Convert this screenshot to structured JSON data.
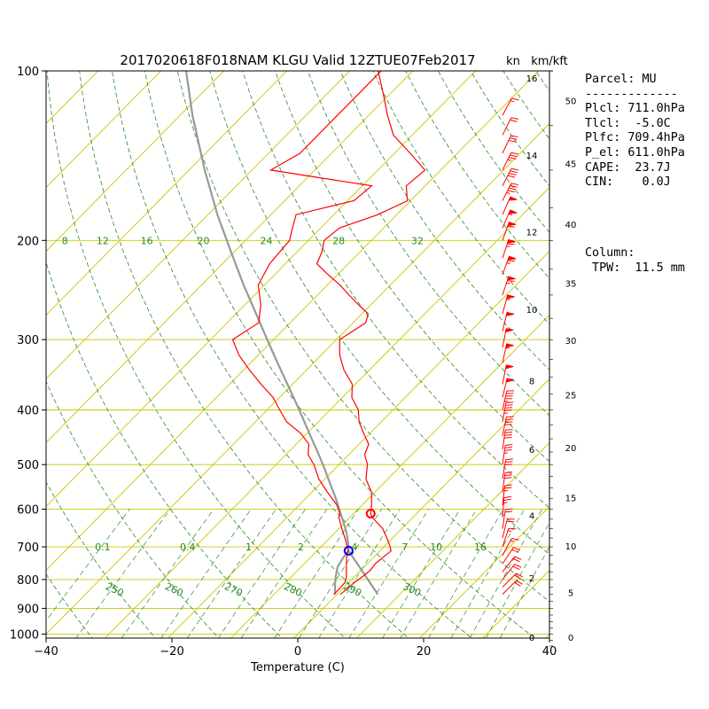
{
  "title": "2017020618F018NAM KLGU Valid 12ZTUE07Feb2017",
  "unit_kn": "kn",
  "unit_kmkft": "km/kft",
  "xlabel": "Temperature (C)",
  "params": {
    "lines": [
      "Parcel: MU",
      "-------------",
      "Plcl: 711.0hPa",
      "Tlcl:  -5.0C",
      "Plfc: 709.4hPa",
      "P_el: 611.0hPa",
      "CAPE:  23.7J",
      "CIN:    0.0J"
    ]
  },
  "column": {
    "lines": [
      "Column:",
      " TPW:  11.5 mm"
    ]
  },
  "colors": {
    "temperature": "#ff0000",
    "dewpoint": "#ff0000",
    "isotherm": "#c8c800",
    "isobar": "#c8c800",
    "dry_adiabat": "#2a8a2a",
    "mixing_ratio": "#2a8a2a",
    "parcel": "#999999",
    "lcl_marker": "#0000ff",
    "el_marker": "#ff0000",
    "barb": "#ff0000"
  },
  "chart_data": {
    "type": "skewt",
    "title": "2017020618F018NAM KLGU Valid 12ZTUE07Feb2017",
    "xlabel": "Temperature (C)",
    "xlim": [
      -40,
      40
    ],
    "plim": [
      1050,
      100
    ],
    "x_ticks": [
      "−40",
      "−20",
      "0",
      "20",
      "40"
    ],
    "x_tick_values": [
      -40,
      -20,
      0,
      20,
      40
    ],
    "pressure_ticks": [
      "1000",
      "900",
      "800",
      "700",
      "600",
      "500",
      "400",
      "300",
      "200",
      "100"
    ],
    "pressure_tick_values": [
      1000,
      900,
      800,
      700,
      600,
      500,
      400,
      300,
      200,
      100
    ],
    "isobars": [
      1000,
      900,
      800,
      700,
      600,
      500,
      400,
      300,
      200,
      100
    ],
    "dry_adiabat_labels": [
      {
        "text": "250",
        "theta": 250
      },
      {
        "text": "260",
        "theta": 260
      },
      {
        "text": "270",
        "theta": 270
      },
      {
        "text": "280",
        "theta": 280
      },
      {
        "text": "290",
        "theta": 290
      },
      {
        "text": "300",
        "theta": 300
      }
    ],
    "mixing_ratio_labels_700": [
      {
        "text": "0.1",
        "t": -31
      },
      {
        "text": "0.4",
        "t": -17.5
      },
      {
        "text": "1",
        "t": -7.8
      },
      {
        "text": "2",
        "t": 0.5
      },
      {
        "text": "4",
        "t": 9
      },
      {
        "text": "7",
        "t": 17
      },
      {
        "text": "10",
        "t": 22
      },
      {
        "text": "16",
        "t": 29
      }
    ],
    "mixing_ratio_labels_200": [
      {
        "text": "8",
        "t": -37
      },
      {
        "text": "12",
        "t": -31
      },
      {
        "text": "16",
        "t": -24
      },
      {
        "text": "20",
        "t": -15
      },
      {
        "text": "24",
        "t": -5
      },
      {
        "text": "28",
        "t": 6.5
      },
      {
        "text": "32",
        "t": 19
      }
    ],
    "height_km": [
      {
        "label": "0",
        "p": 1012
      },
      {
        "label": "2",
        "p": 795
      },
      {
        "label": "4",
        "p": 615
      },
      {
        "label": "6",
        "p": 470
      },
      {
        "label": "8",
        "p": 355
      },
      {
        "label": "10",
        "p": 265
      },
      {
        "label": "12",
        "p": 193
      },
      {
        "label": "14",
        "p": 141
      },
      {
        "label": "16",
        "p": 103
      }
    ],
    "height_kft": [
      {
        "label": "0",
        "p": 1012
      },
      {
        "label": "5",
        "p": 843
      },
      {
        "label": "10",
        "p": 697
      },
      {
        "label": "15",
        "p": 572
      },
      {
        "label": "20",
        "p": 466
      },
      {
        "label": "25",
        "p": 376
      },
      {
        "label": "30",
        "p": 301
      },
      {
        "label": "35",
        "p": 238
      },
      {
        "label": "40",
        "p": 187
      },
      {
        "label": "45",
        "p": 146
      },
      {
        "label": "50",
        "p": 113
      }
    ],
    "temperature": {
      "p": [
        850,
        830,
        810,
        790,
        770,
        750,
        730,
        712,
        700,
        680,
        650,
        620,
        611,
        590,
        560,
        530,
        500,
        480,
        460,
        440,
        420,
        400,
        380,
        360,
        340,
        320,
        300,
        280,
        270,
        260,
        250,
        240,
        230,
        220,
        210,
        200,
        190,
        180,
        170,
        160,
        150,
        140,
        130,
        120,
        110,
        100
      ],
      "t": [
        0.5,
        0.8,
        0.9,
        1.3,
        1.5,
        1.3,
        1.5,
        1.8,
        1.0,
        -0.5,
        -3.0,
        -6.5,
        -7.3,
        -8.5,
        -10.5,
        -13.5,
        -15.5,
        -17.5,
        -18.5,
        -21.0,
        -23.5,
        -25.5,
        -28.5,
        -30.5,
        -34.0,
        -37.0,
        -39.5,
        -38.0,
        -39.0,
        -42.0,
        -45.0,
        -48.0,
        -51.5,
        -55.0,
        -56.0,
        -57.5,
        -57.0,
        -53.0,
        -50.5,
        -53.0,
        -52.5,
        -57.5,
        -63.0,
        -67.0,
        -71.0,
        -75.5
      ]
    },
    "dewpoint": {
      "p": [
        850,
        830,
        810,
        790,
        770,
        750,
        730,
        712,
        700,
        680,
        650,
        620,
        611,
        590,
        560,
        530,
        500,
        480,
        460,
        440,
        420,
        400,
        380,
        360,
        340,
        320,
        300,
        280,
        260,
        240,
        220,
        200,
        190,
        180,
        170,
        160,
        150,
        140,
        130,
        120,
        110,
        100
      ],
      "t": [
        -0.5,
        -0.5,
        -0.6,
        -1.3,
        -2.3,
        -3.3,
        -4.3,
        -5.0,
        -5.8,
        -7.2,
        -9.5,
        -11.8,
        -12.2,
        -14.0,
        -17.5,
        -21.0,
        -24.0,
        -26.5,
        -28.0,
        -31.0,
        -35.0,
        -38.0,
        -41.0,
        -45.0,
        -49.0,
        -53.0,
        -56.5,
        -55.0,
        -57.5,
        -61.0,
        -62.5,
        -63.0,
        -64.5,
        -66.0,
        -59.0,
        -58.5,
        -77.0,
        -75.0,
        -75.0,
        -75.0,
        -75.0,
        -75.0
      ]
    },
    "parcel": {
      "p": [
        850,
        820,
        790,
        760,
        730,
        711,
        690,
        660,
        630,
        600,
        570,
        540,
        510,
        480,
        450,
        420,
        390,
        360,
        330,
        300,
        270,
        240,
        210,
        180,
        150,
        120,
        100
      ],
      "t": [
        -0.3,
        -1.7,
        -3.0,
        -4.2,
        -4.8,
        -5.0,
        -6.2,
        -8.2,
        -10.5,
        -13.0,
        -15.6,
        -18.5,
        -21.5,
        -24.8,
        -28.4,
        -32.2,
        -36.3,
        -40.8,
        -45.7,
        -51.0,
        -56.8,
        -63.3,
        -70.4,
        -78.5,
        -87.5,
        -98.0,
        -106.0
      ]
    },
    "parcel_dry_branch": {
      "p": [
        711,
        850
      ],
      "t": [
        -5.0,
        6.5
      ]
    },
    "lcl": {
      "p": 711,
      "t": -5.0
    },
    "el": {
      "p": 611,
      "t": -7.3
    },
    "wind_barbs": [
      {
        "p": 120,
        "u": -8,
        "v": -15
      },
      {
        "p": 130,
        "u": -10,
        "v": -20
      },
      {
        "p": 140,
        "u": -12,
        "v": -25
      },
      {
        "p": 150,
        "u": -15,
        "v": -30
      },
      {
        "p": 160,
        "u": -18,
        "v": -35
      },
      {
        "p": 170,
        "u": -20,
        "v": -40
      },
      {
        "p": 180,
        "u": -20,
        "v": -45
      },
      {
        "p": 190,
        "u": -22,
        "v": -50
      },
      {
        "p": 200,
        "u": -20,
        "v": -55
      },
      {
        "p": 215,
        "u": -20,
        "v": -60
      },
      {
        "p": 230,
        "u": -22,
        "v": -60
      },
      {
        "p": 250,
        "u": -20,
        "v": -60
      },
      {
        "p": 270,
        "u": -15,
        "v": -55
      },
      {
        "p": 290,
        "u": -12,
        "v": -50
      },
      {
        "p": 310,
        "u": -10,
        "v": -50
      },
      {
        "p": 330,
        "u": -12,
        "v": -55
      },
      {
        "p": 360,
        "u": -10,
        "v": -50
      },
      {
        "p": 380,
        "u": -12,
        "v": -50
      },
      {
        "p": 400,
        "u": -10,
        "v": -45
      },
      {
        "p": 420,
        "u": -8,
        "v": -45
      },
      {
        "p": 445,
        "u": -8,
        "v": -40
      },
      {
        "p": 470,
        "u": -6,
        "v": -40
      },
      {
        "p": 500,
        "u": -5,
        "v": -35
      },
      {
        "p": 530,
        "u": -5,
        "v": -30
      },
      {
        "p": 560,
        "u": -4,
        "v": -30
      },
      {
        "p": 590,
        "u": -3,
        "v": -25
      },
      {
        "p": 620,
        "u": -2,
        "v": -25
      },
      {
        "p": 650,
        "u": -3,
        "v": -20
      },
      {
        "p": 675,
        "u": -5,
        "v": -20
      },
      {
        "p": 700,
        "u": -5,
        "v": -15
      },
      {
        "p": 725,
        "u": -8,
        "v": -15
      },
      {
        "p": 750,
        "u": -10,
        "v": -15
      },
      {
        "p": 775,
        "u": -12,
        "v": -15
      },
      {
        "p": 800,
        "u": -12,
        "v": -15
      },
      {
        "p": 825,
        "u": -15,
        "v": -15
      },
      {
        "p": 850,
        "u": -15,
        "v": -15
      }
    ]
  }
}
